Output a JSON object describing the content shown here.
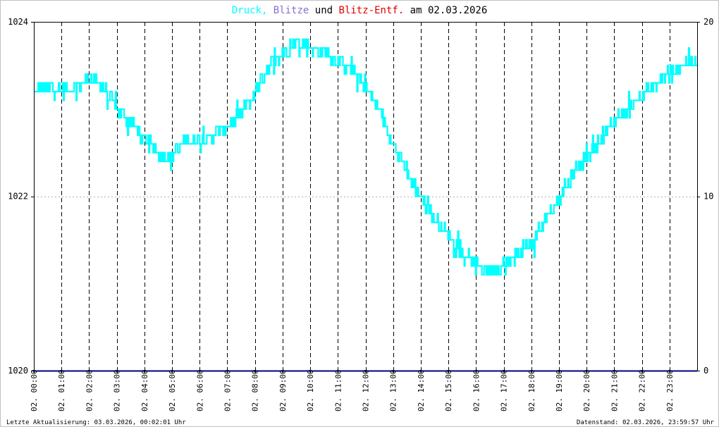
{
  "title": {
    "part1": "Druck",
    "sep1": ",",
    "part2": "Blitze",
    "part3": "und",
    "part4": "Blitz-Entf.",
    "part5": "am 02.03.2026"
  },
  "colors": {
    "druck": "#00ffff",
    "blitze": "#8a6dd0",
    "blitzentf": "#e00000",
    "text": "#000000",
    "baseline": "#000080"
  },
  "footer": {
    "left": "Letzte Aktualisierung: 03.03.2026, 00:02:01 Uhr",
    "right": "Datenstand: 02.03.2026, 23:59:57 Uhr"
  },
  "chart_data": {
    "type": "line",
    "title": "Druck, Blitze und Blitz-Entf. am 02.03.2026",
    "left_axis": {
      "range": [
        1020,
        1024
      ],
      "ticks": [
        "1020",
        "1022",
        "1024"
      ]
    },
    "right_axis": {
      "range": [
        0,
        20
      ],
      "ticks": [
        "0",
        "10",
        "20"
      ]
    },
    "x_ticks": [
      "02. 00:00",
      "02. 01:00",
      "02. 02:00",
      "02. 03:00",
      "02. 04:00",
      "02. 05:00",
      "02. 06:00",
      "02. 07:00",
      "02. 08:00",
      "02. 09:00",
      "02. 10:00",
      "02. 11:00",
      "02. 12:00",
      "02. 13:00",
      "02. 14:00",
      "02. 15:00",
      "02. 16:00",
      "02. 17:00",
      "02. 18:00",
      "02. 19:00",
      "02. 20:00",
      "02. 21:00",
      "02. 22:00",
      "02. 23:00"
    ],
    "x_range_hours": [
      0,
      24
    ],
    "grid": "vertical dashed at each hour, horizontal dotted at 1022",
    "series": [
      {
        "name": "Druck",
        "axis": "left",
        "x": [
          0,
          0.5,
          1,
          1.5,
          2,
          2.5,
          3,
          3.5,
          4,
          4.5,
          5,
          5.5,
          6,
          6.5,
          7,
          7.5,
          8,
          8.5,
          9,
          9.5,
          10,
          10.5,
          11,
          11.5,
          12,
          12.5,
          13,
          13.5,
          14,
          14.5,
          15,
          15.5,
          16,
          16.5,
          17,
          17.5,
          18,
          18.5,
          19,
          19.5,
          20,
          20.5,
          21,
          21.5,
          22,
          22.5,
          23,
          23.5,
          24
        ],
        "values": [
          1023.2,
          1023.25,
          1023.2,
          1023.25,
          1023.35,
          1023.25,
          1023.0,
          1022.85,
          1022.65,
          1022.5,
          1022.45,
          1022.65,
          1022.65,
          1022.7,
          1022.8,
          1022.95,
          1023.2,
          1023.5,
          1023.65,
          1023.75,
          1023.7,
          1023.65,
          1023.55,
          1023.45,
          1023.25,
          1023.0,
          1022.6,
          1022.25,
          1022.0,
          1021.75,
          1021.55,
          1021.35,
          1021.2,
          1021.15,
          1021.2,
          1021.35,
          1021.45,
          1021.75,
          1021.95,
          1022.25,
          1022.45,
          1022.65,
          1022.85,
          1023.0,
          1023.15,
          1023.3,
          1023.4,
          1023.5,
          1023.55
        ]
      },
      {
        "name": "Blitze",
        "axis": "right",
        "x": [
          0,
          24
        ],
        "values": [
          0,
          0
        ]
      },
      {
        "name": "Blitz-Entf.",
        "axis": "right",
        "x": [
          0,
          24
        ],
        "values": [
          0,
          0
        ]
      }
    ]
  }
}
